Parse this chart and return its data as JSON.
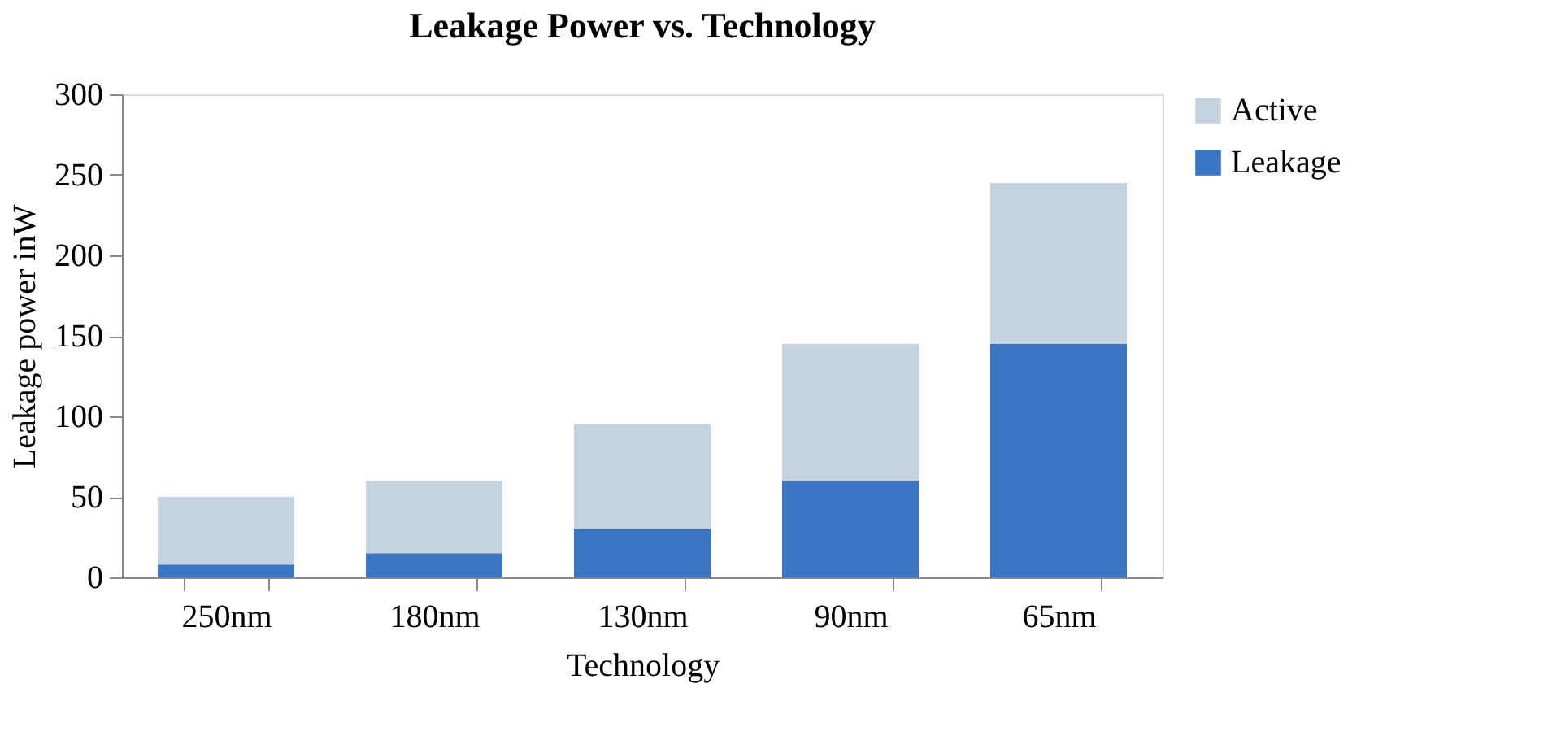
{
  "chart_data": {
    "type": "bar",
    "title": "Leakage Power vs. Technology",
    "xlabel": "Technology",
    "ylabel": "Leakage power inW",
    "categories": [
      "250nm",
      "180nm",
      "130nm",
      "90nm",
      "65nm"
    ],
    "stacked": true,
    "series": [
      {
        "name": "Leakage",
        "color": "#3a75c4",
        "values": [
          8,
          15,
          30,
          60,
          145
        ]
      },
      {
        "name": "Active",
        "color": "#c5d2e2",
        "values": [
          42,
          45,
          65,
          85,
          100
        ]
      }
    ],
    "ylim": [
      0,
      300
    ],
    "yticks": [
      0,
      50,
      100,
      150,
      200,
      250,
      300
    ],
    "grid": false,
    "legend": "right"
  }
}
